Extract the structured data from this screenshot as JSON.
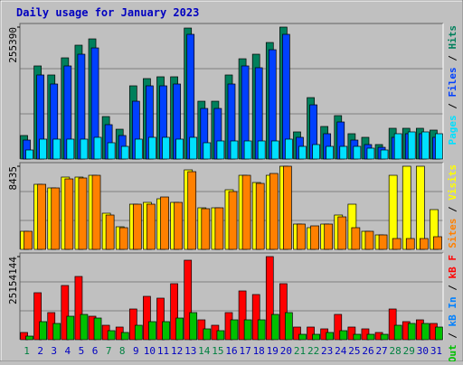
{
  "title": "Daily usage for January 2023",
  "legend_separator": " / ",
  "x_axis": {
    "categories": [
      "1",
      "2",
      "3",
      "4",
      "5",
      "6",
      "7",
      "8",
      "9",
      "10",
      "11",
      "12",
      "13",
      "14",
      "15",
      "16",
      "17",
      "18",
      "19",
      "20",
      "21",
      "22",
      "23",
      "24",
      "25",
      "26",
      "27",
      "28",
      "29",
      "30",
      "31"
    ],
    "label_colors": [
      "#008040",
      "#0000c0",
      "#0000c0",
      "#0000c0",
      "#0000c0",
      "#0000c0",
      "#008040",
      "#008040",
      "#0000c0",
      "#0000c0",
      "#0000c0",
      "#0000c0",
      "#0000c0",
      "#008040",
      "#008040",
      "#0000c0",
      "#0000c0",
      "#0000c0",
      "#0000c0",
      "#0000c0",
      "#008040",
      "#008040",
      "#0000c0",
      "#0000c0",
      "#0000c0",
      "#0000c0",
      "#0000c0",
      "#008040",
      "#008040",
      "#0000c0",
      "#0000c0"
    ]
  },
  "chart_data": [
    {
      "type": "bar",
      "ylim": [
        0,
        262388
      ],
      "yticks": [
        255390
      ],
      "series": [
        {
          "name": "Hits",
          "color": "#00805c",
          "values": [
            45500,
            180200,
            162700,
            195900,
            220400,
            232600,
            82200,
            57700,
            141700,
            155700,
            159200,
            159200,
            253600,
            111900,
            111900,
            162700,
            194100,
            202900,
            225600,
            255390,
            52500,
            118900,
            63000,
            84000,
            49000,
            42000,
            28000,
            59500,
            59500,
            59500,
            56000
          ]
        },
        {
          "name": "Files",
          "color": "#0040ff",
          "values": [
            36700,
            162700,
            145200,
            180200,
            202900,
            215100,
            66500,
            45500,
            111900,
            141700,
            141700,
            145200,
            241400,
            97900,
            97900,
            145200,
            180200,
            176700,
            211600,
            241400,
            42000,
            104900,
            49000,
            71700,
            36700,
            28000,
            22700,
            42000,
            49000,
            49000,
            42000
          ]
        },
        {
          "name": "Pages",
          "color": "#00e0ff",
          "values": [
            17500,
            38500,
            38500,
            38500,
            38500,
            42000,
            31500,
            24500,
            38500,
            42000,
            42000,
            38500,
            42000,
            31500,
            35000,
            35000,
            35000,
            35000,
            35000,
            38500,
            24500,
            28000,
            24500,
            24500,
            24500,
            21000,
            17500,
            49000,
            52500,
            52500,
            49000
          ]
        }
      ]
    },
    {
      "type": "bar",
      "ylim": [
        0,
        8802
      ],
      "yticks": [
        8435
      ],
      "series": [
        {
          "name": "Visits",
          "color": "#ffff00",
          "values": [
            1834,
            6601,
            6234,
            7335,
            7335,
            7517,
            3667,
            2292,
            4584,
            4767,
            5134,
            4767,
            8068,
            4217,
            4217,
            6051,
            7517,
            6784,
            7517,
            8435,
            2567,
            2200,
            2567,
            3484,
            4584,
            1834,
            1467,
            7517,
            8435,
            8435,
            4034
          ]
        },
        {
          "name": "Sites",
          "color": "#ff8000",
          "values": [
            1834,
            6601,
            6234,
            7151,
            7243,
            7517,
            3484,
            2200,
            4584,
            4584,
            5317,
            4767,
            7884,
            4126,
            4217,
            5867,
            7517,
            6693,
            7701,
            8435,
            2567,
            2384,
            2567,
            3300,
            2200,
            1834,
            1467,
            1100,
            1100,
            1100,
            1284
          ]
        }
      ]
    },
    {
      "type": "bar",
      "ylim": [
        0,
        26247800
      ],
      "yticks": [
        25154144
      ],
      "series": [
        {
          "name": "kB F",
          "color": "#ff0000",
          "values": [
            2187300,
            14217500,
            8202400,
            16404800,
            19139000,
            7108800,
            4374600,
            3827800,
            9296100,
            13123900,
            12577000,
            16951700,
            24060400,
            6015100,
            4374600,
            8202400,
            14764400,
            13670700,
            25154144,
            16951700,
            3827800,
            3827800,
            3281000,
            7655600,
            3827800,
            3281000,
            2187300,
            9296100,
            5468300,
            6015100,
            4921500
          ]
        },
        {
          "name": "kB In",
          "color": "#0080ff",
          "values": [
            0,
            0,
            0,
            0,
            0,
            0,
            0,
            0,
            0,
            0,
            0,
            0,
            0,
            0,
            0,
            0,
            0,
            0,
            0,
            0,
            0,
            0,
            0,
            0,
            0,
            0,
            0,
            0,
            0,
            0,
            0
          ]
        },
        {
          "name": "kB Out",
          "color": "#00c000",
          "values": [
            1093700,
            5468300,
            4921500,
            7108800,
            7655600,
            6561900,
            2734100,
            2187300,
            4374600,
            5468300,
            5468300,
            6561900,
            8202400,
            3281000,
            2734100,
            6015100,
            6015100,
            6015100,
            7655600,
            8202400,
            1640500,
            1640500,
            2187300,
            2734100,
            1640500,
            1640500,
            1640500,
            4374600,
            4921500,
            4921500,
            3827800
          ]
        }
      ]
    }
  ]
}
